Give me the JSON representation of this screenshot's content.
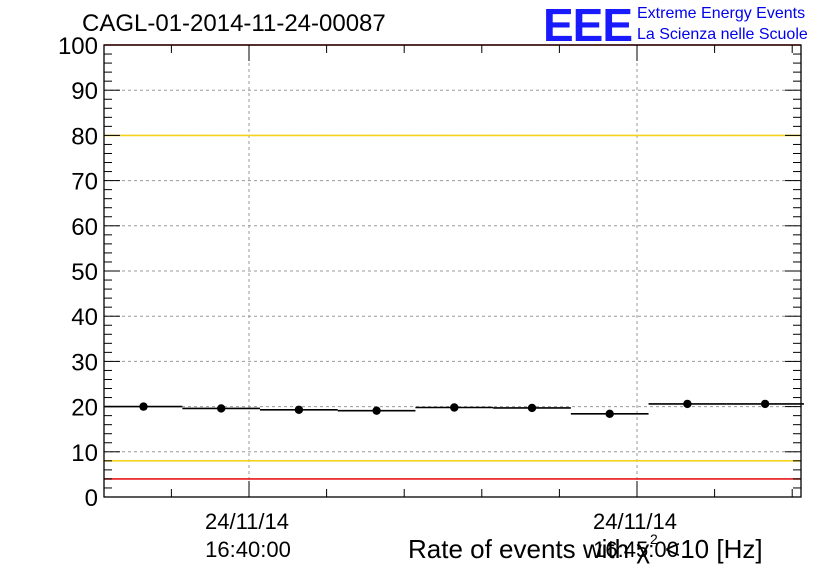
{
  "header": {
    "title": "CAGL-01-2014-11-24-00087"
  },
  "logo": {
    "mark": "EEE",
    "line1": "Extreme Energy Events",
    "line2": "La Scienza nelle Scuole"
  },
  "colors": {
    "threshold_outer": "#e8191c",
    "threshold_inner": "#f4d320",
    "logo": "#1a1aff",
    "grid": "#9a9a9a",
    "data": "#000000"
  },
  "chart_data": {
    "type": "scatter",
    "title": "CAGL-01-2014-11-24-00087",
    "xlabel_prefix": "Rate of events with ",
    "xlabel_chi": "χ",
    "xlabel_sup": "2",
    "xlabel_suffix": " <10 [Hz]",
    "ylabel": "",
    "ylim": [
      0,
      100
    ],
    "yticks": [
      "0",
      "10",
      "20",
      "30",
      "40",
      "50",
      "60",
      "70",
      "80",
      "90",
      "100"
    ],
    "xtick_labels": [
      {
        "date": "24/11/14",
        "time": "16:40:00"
      },
      {
        "date": "24/11/14",
        "time": "16:45:00"
      }
    ],
    "threshold_lines": [
      {
        "value": 100,
        "color": "#e8191c"
      },
      {
        "value": 80,
        "color": "#f4d320"
      },
      {
        "value": 8,
        "color": "#f4d320"
      },
      {
        "value": 4,
        "color": "#e8191c"
      }
    ],
    "grid": true,
    "series": [
      {
        "values": [
          20.0,
          19.6,
          19.3,
          19.1,
          19.8,
          19.7,
          18.4,
          20.6,
          20.6
        ]
      }
    ]
  }
}
